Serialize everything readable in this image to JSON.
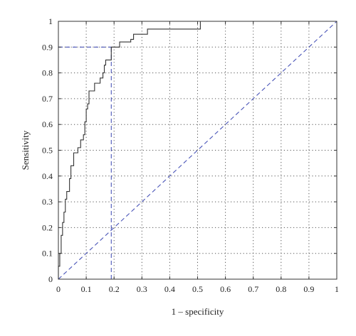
{
  "chart_data": {
    "type": "line",
    "title": "",
    "xlabel": "1 – specificity",
    "ylabel": "Sensitivity",
    "xlim": [
      0,
      1
    ],
    "ylim": [
      0,
      1
    ],
    "grid": true,
    "grid_style": "dotted",
    "x_ticks": [
      "0",
      "0.1",
      "0.2",
      "0.3",
      "0.4",
      "0.5",
      "0.6",
      "0.7",
      "0.8",
      "0.9",
      "1"
    ],
    "y_ticks": [
      "0",
      "0.1",
      "0.2",
      "0.3",
      "0.4",
      "0.5",
      "0.6",
      "0.7",
      "0.8",
      "0.9",
      "1"
    ],
    "series": [
      {
        "style": "step",
        "color": "#333333",
        "points": [
          [
            0,
            0
          ],
          [
            0,
            0.05
          ],
          [
            0.005,
            0.05
          ],
          [
            0.005,
            0.1
          ],
          [
            0.01,
            0.1
          ],
          [
            0.01,
            0.17
          ],
          [
            0.015,
            0.17
          ],
          [
            0.015,
            0.22
          ],
          [
            0.02,
            0.22
          ],
          [
            0.02,
            0.26
          ],
          [
            0.025,
            0.26
          ],
          [
            0.025,
            0.31
          ],
          [
            0.03,
            0.31
          ],
          [
            0.03,
            0.34
          ],
          [
            0.04,
            0.34
          ],
          [
            0.04,
            0.39
          ],
          [
            0.045,
            0.39
          ],
          [
            0.045,
            0.44
          ],
          [
            0.055,
            0.44
          ],
          [
            0.055,
            0.49
          ],
          [
            0.07,
            0.49
          ],
          [
            0.07,
            0.51
          ],
          [
            0.08,
            0.51
          ],
          [
            0.08,
            0.54
          ],
          [
            0.09,
            0.54
          ],
          [
            0.09,
            0.56
          ],
          [
            0.095,
            0.56
          ],
          [
            0.095,
            0.61
          ],
          [
            0.1,
            0.61
          ],
          [
            0.1,
            0.66
          ],
          [
            0.105,
            0.66
          ],
          [
            0.105,
            0.68
          ],
          [
            0.11,
            0.68
          ],
          [
            0.11,
            0.73
          ],
          [
            0.13,
            0.73
          ],
          [
            0.13,
            0.76
          ],
          [
            0.15,
            0.76
          ],
          [
            0.15,
            0.78
          ],
          [
            0.16,
            0.78
          ],
          [
            0.16,
            0.8
          ],
          [
            0.165,
            0.8
          ],
          [
            0.165,
            0.83
          ],
          [
            0.17,
            0.83
          ],
          [
            0.17,
            0.85
          ],
          [
            0.19,
            0.85
          ],
          [
            0.19,
            0.9
          ],
          [
            0.22,
            0.9
          ],
          [
            0.22,
            0.92
          ],
          [
            0.26,
            0.92
          ],
          [
            0.26,
            0.93
          ],
          [
            0.27,
            0.93
          ],
          [
            0.27,
            0.95
          ],
          [
            0.32,
            0.95
          ],
          [
            0.32,
            0.97
          ],
          [
            0.51,
            0.97
          ],
          [
            0.51,
            1
          ],
          [
            1,
            1
          ]
        ]
      },
      {
        "style": "dashed",
        "color": "#4a55b8",
        "points": [
          [
            0,
            0
          ],
          [
            1,
            1
          ]
        ]
      }
    ],
    "annotations": [
      {
        "style": "dashed",
        "color": "#4a55b8",
        "points": [
          [
            0,
            0.9
          ],
          [
            0.19,
            0.9
          ]
        ]
      },
      {
        "style": "dashed",
        "color": "#4a55b8",
        "points": [
          [
            0.19,
            0
          ],
          [
            0.19,
            0.9
          ]
        ]
      }
    ]
  }
}
